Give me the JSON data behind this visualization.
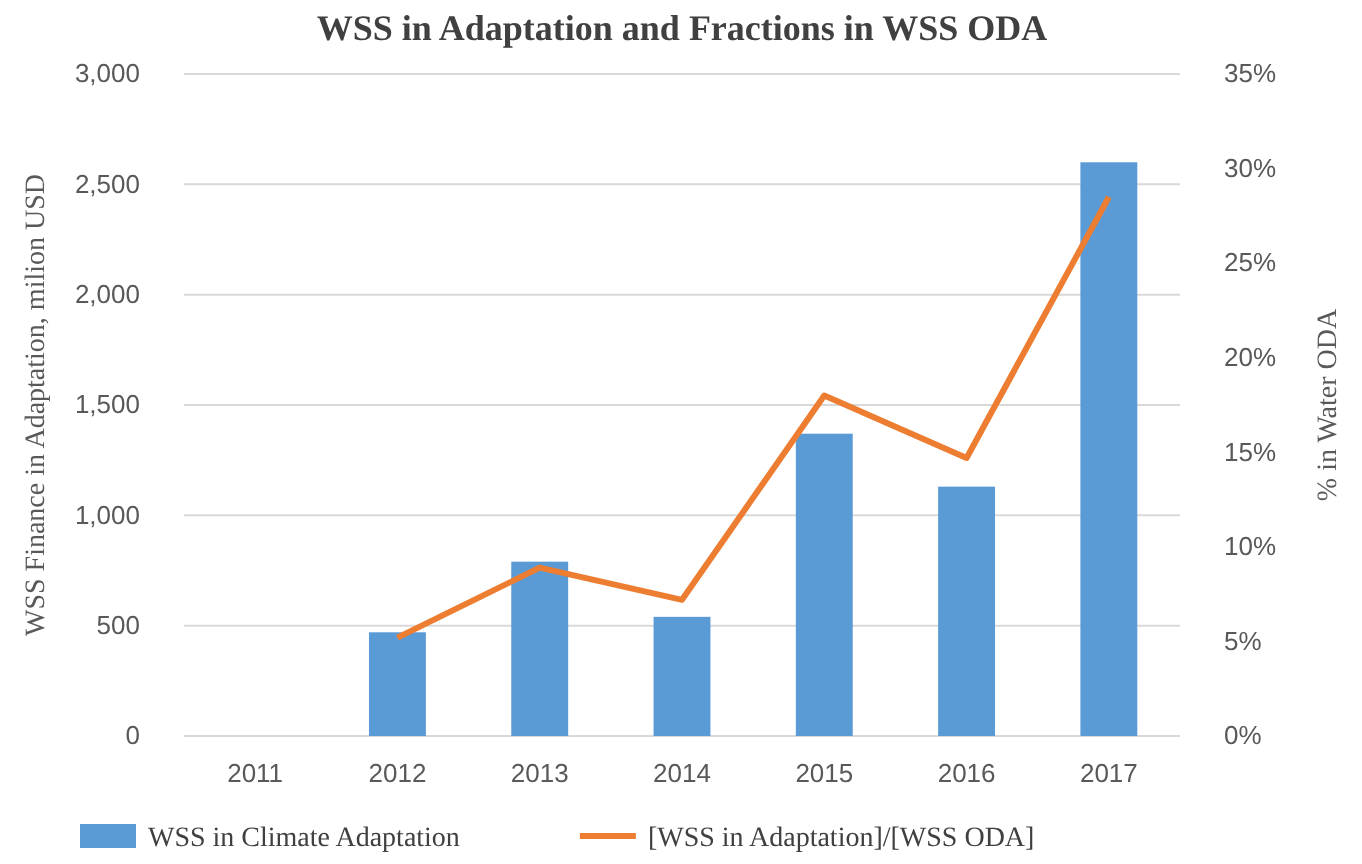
{
  "chart_data": {
    "type": "bar",
    "title": "WSS in Adaptation and Fractions in WSS ODA",
    "ylabel": "WSS Finance in Adaptation, milion USD",
    "y2label": "% in Water ODA",
    "categories": [
      "2011",
      "2012",
      "2013",
      "2014",
      "2015",
      "2016",
      "2017"
    ],
    "series": [
      {
        "name": "WSS in Climate Adaptation",
        "color": "#5b9bd5",
        "values": [
          null,
          470,
          790,
          540,
          1370,
          1130,
          2600
        ]
      },
      {
        "name": "[WSS in Adaptation]/[WSS ODA]",
        "type": "line",
        "axis": "y2",
        "color": "#ed7d31",
        "values": [
          null,
          5.2,
          8.9,
          7.2,
          18,
          14.7,
          28.5
        ]
      }
    ],
    "ylim": [
      0,
      3000
    ],
    "yticks": [
      {
        "value": 0,
        "label": "0"
      },
      {
        "value": 500,
        "label": "500"
      },
      {
        "value": 1000,
        "label": "1,000"
      },
      {
        "value": 1500,
        "label": "1,500"
      },
      {
        "value": 2000,
        "label": "2,000"
      },
      {
        "value": 2500,
        "label": "2,500"
      },
      {
        "value": 3000,
        "label": "3,000"
      }
    ],
    "y2lim": [
      0,
      35
    ],
    "y2ticks": [
      {
        "value": 0,
        "label": "0%"
      },
      {
        "value": 5,
        "label": "5%"
      },
      {
        "value": 10,
        "label": "10%"
      },
      {
        "value": 15,
        "label": "15%"
      },
      {
        "value": 20,
        "label": "20%"
      },
      {
        "value": 25,
        "label": "25%"
      },
      {
        "value": 30,
        "label": "30%"
      },
      {
        "value": 35,
        "label": "35%"
      }
    ],
    "grid": "y",
    "legend": "bottom",
    "marker": "none",
    "line_style": "solid"
  }
}
